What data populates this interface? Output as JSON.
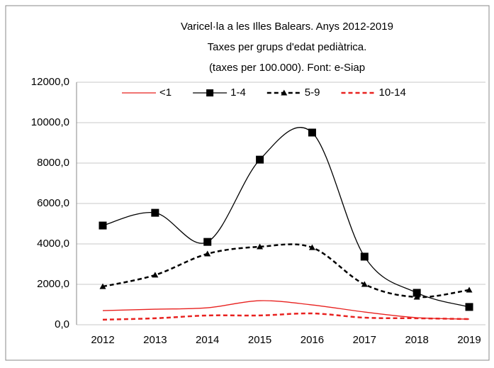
{
  "chart_data": {
    "type": "line",
    "title": [
      "Varicel·la a les Illes Balears. Anys 2012-2019",
      "Taxes per grups d'edat pediàtrica.",
      "(taxes per 100.000). Font: e-Siap"
    ],
    "categories": [
      "2012",
      "2013",
      "2014",
      "2015",
      "2016",
      "2017",
      "2018",
      "2019"
    ],
    "series": [
      {
        "name": "<1",
        "color": "#e8211f",
        "width": 1.3,
        "dash": false,
        "marker": "none",
        "values": [
          700,
          770,
          840,
          1190,
          980,
          630,
          350,
          280
        ]
      },
      {
        "name": "1-4",
        "color": "#000000",
        "width": 1.3,
        "dash": false,
        "marker": "square",
        "values": [
          4910,
          5540,
          4100,
          8170,
          9510,
          3370,
          1580,
          880
        ]
      },
      {
        "name": "5-9",
        "color": "#000000",
        "width": 2.5,
        "dash": true,
        "marker": "triangle",
        "values": [
          1890,
          2460,
          3510,
          3860,
          3820,
          2000,
          1370,
          1720
        ]
      },
      {
        "name": "10-14",
        "color": "#e8211f",
        "width": 2.5,
        "dash": true,
        "marker": "none",
        "values": [
          250,
          320,
          460,
          460,
          560,
          350,
          320,
          280
        ]
      }
    ],
    "ylim": [
      0,
      12000
    ],
    "yticks": [
      {
        "value": 0,
        "label": "0,0"
      },
      {
        "value": 2000,
        "label": "2000,0"
      },
      {
        "value": 4000,
        "label": "4000,0"
      },
      {
        "value": 6000,
        "label": "6000,0"
      },
      {
        "value": 8000,
        "label": "8000,0"
      },
      {
        "value": 10000,
        "label": "10000,0"
      },
      {
        "value": 12000,
        "label": "12000,0"
      }
    ],
    "grid": true,
    "legend": "top",
    "smooth": true
  }
}
